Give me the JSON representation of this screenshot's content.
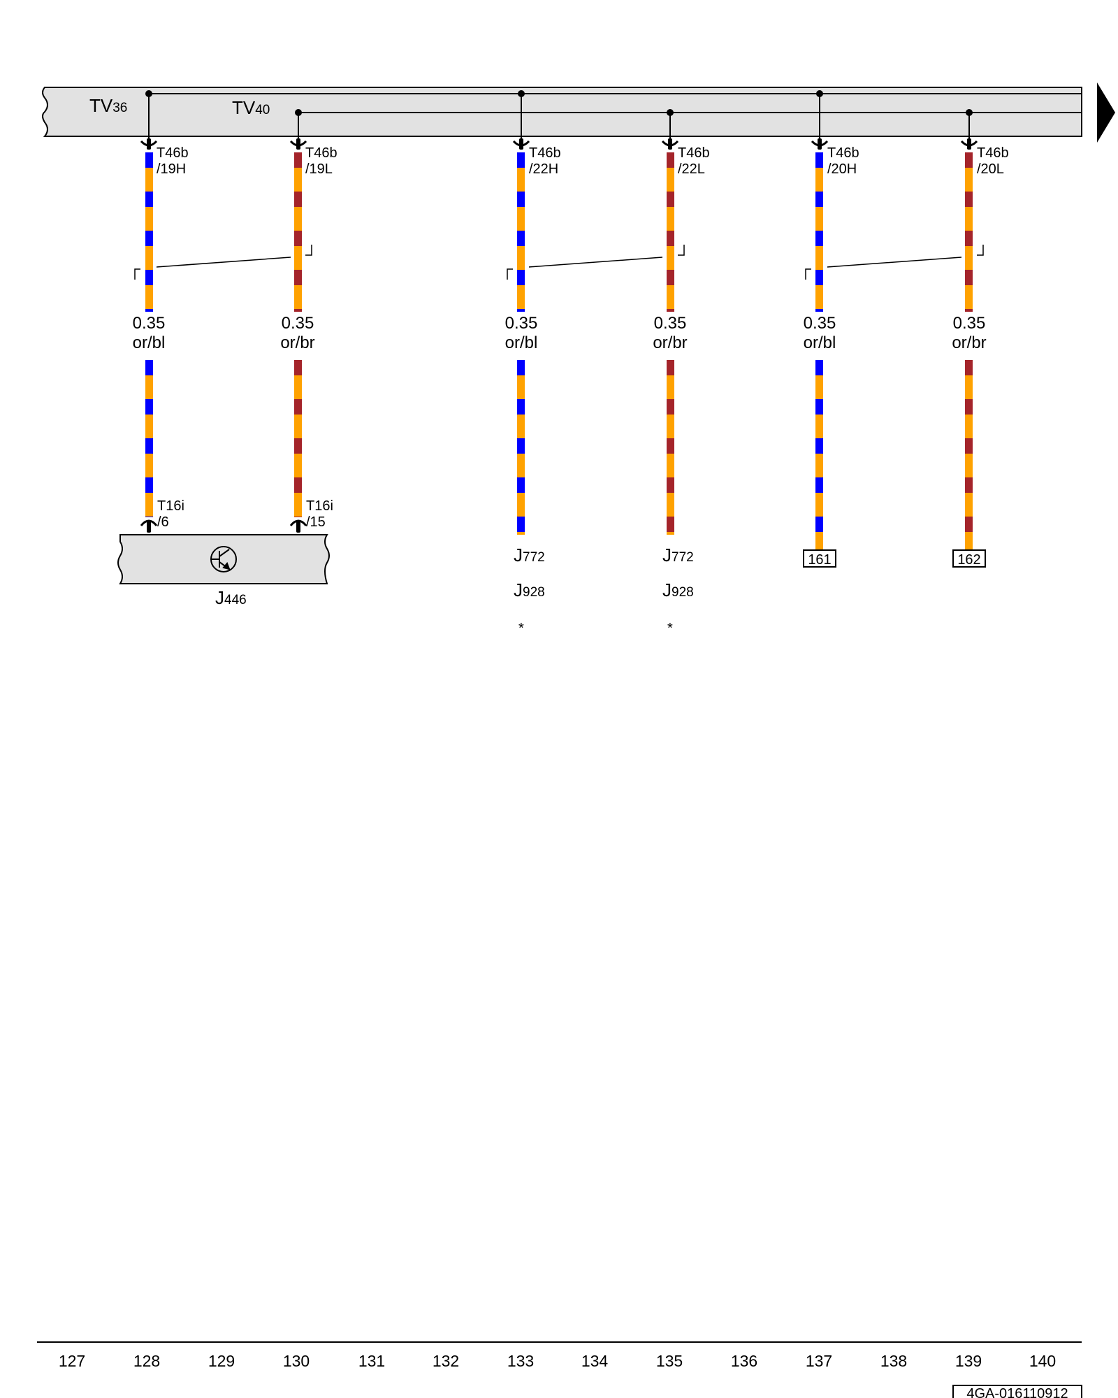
{
  "colors": {
    "orange": "#FFA200",
    "blue": "#0000FF",
    "brown": "#A4242A",
    "bus_fill": "#E2E2E2",
    "line": "#000000"
  },
  "bus": {
    "left_label_main": "TV",
    "left_label_sub": "36",
    "right_label_main": "TV",
    "right_label_sub": "40",
    "continues_arrow": "arrow-right-icon"
  },
  "wires": [
    {
      "id": "w1",
      "column": 128,
      "connector": "T46b",
      "pin": "/19H",
      "gauge": "0.35",
      "color_code": "or/bl",
      "stripe": "blue"
    },
    {
      "id": "w2",
      "column": 130,
      "connector": "T46b",
      "pin": "/19L",
      "gauge": "0.35",
      "color_code": "or/br",
      "stripe": "brown"
    },
    {
      "id": "w3",
      "column": 133,
      "connector": "T46b",
      "pin": "/22H",
      "gauge": "0.35",
      "color_code": "or/bl",
      "stripe": "blue"
    },
    {
      "id": "w4",
      "column": 135,
      "connector": "T46b",
      "pin": "/22L",
      "gauge": "0.35",
      "color_code": "or/br",
      "stripe": "brown"
    },
    {
      "id": "w5",
      "column": 137,
      "connector": "T46b",
      "pin": "/20H",
      "gauge": "0.35",
      "color_code": "or/bl",
      "stripe": "blue"
    },
    {
      "id": "w6",
      "column": 139,
      "connector": "T46b",
      "pin": "/20L",
      "gauge": "0.35",
      "color_code": "or/br",
      "stripe": "brown"
    }
  ],
  "bottom_connectors": [
    {
      "connector": "T16i",
      "pin": "/6"
    },
    {
      "connector": "T16i",
      "pin": "/15"
    }
  ],
  "component_j446": {
    "main": "J",
    "sub": "446",
    "icon": "transistor-icon"
  },
  "destinations": {
    "w3": {
      "line1_main": "J",
      "line1_sub": "772",
      "line2_main": "J",
      "line2_sub": "928",
      "note": "*"
    },
    "w4": {
      "line1_main": "J",
      "line1_sub": "772",
      "line2_main": "J",
      "line2_sub": "928",
      "note": "*"
    },
    "w5": {
      "ref": "161"
    },
    "w6": {
      "ref": "162"
    }
  },
  "column_numbers": [
    "127",
    "128",
    "129",
    "130",
    "131",
    "132",
    "133",
    "134",
    "135",
    "136",
    "137",
    "138",
    "139",
    "140"
  ],
  "document_id": "4GA-016110912"
}
